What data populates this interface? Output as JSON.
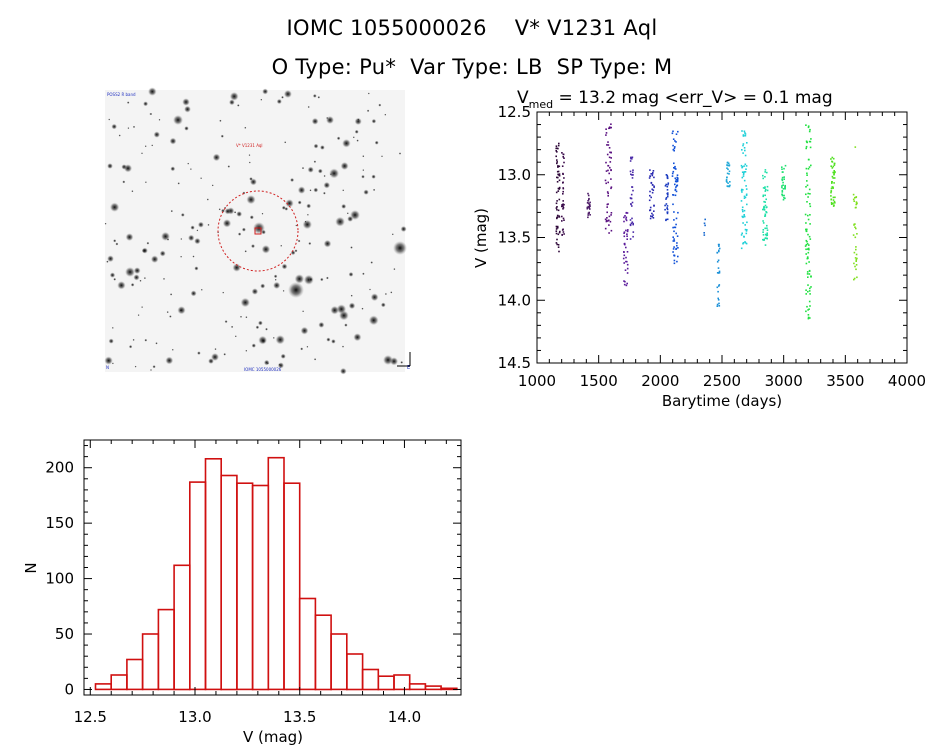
{
  "header": {
    "line1": "IOMC 1055000026    V* V1231 Aql",
    "line2": "O Type: Pu*  Var Type: LB  SP Type: M"
  },
  "image_panel": {
    "corner_label_tl": "POSS2 R band",
    "target_label": "V* V1231 Aql",
    "bottom_label": "IOMC 1055000026",
    "corner_label_bl": "N",
    "corner_label_br": "E"
  },
  "chart_data": [
    {
      "type": "scatter",
      "title_parts": {
        "v": "V",
        "sub": "med",
        "rest": " = 13.2 mag <err_V> = 0.1 mag"
      },
      "xlabel": "Barytime (days)",
      "ylabel": "V (mag)",
      "xlim": [
        1000,
        4000
      ],
      "ylim": [
        14.5,
        12.5
      ],
      "xticks": [
        1000,
        1500,
        2000,
        2500,
        3000,
        3500,
        4000
      ],
      "yticks": [
        12.5,
        13.0,
        13.5,
        14.0,
        14.5
      ],
      "xtick_labels": [
        "1000",
        "1500",
        "2000",
        "2500",
        "3000",
        "3500",
        "4000"
      ],
      "ytick_labels": [
        "12.5",
        "13.0",
        "13.5",
        "14.0",
        "14.5"
      ],
      "clusters": [
        {
          "t": 1170,
          "dt": 30,
          "mlo": 12.75,
          "mhi": 13.65,
          "color": "#2e0839",
          "n": 60
        },
        {
          "t": 1210,
          "dt": 20,
          "mlo": 12.8,
          "mhi": 13.5,
          "color": "#3a0a4a",
          "n": 35
        },
        {
          "t": 1420,
          "dt": 25,
          "mlo": 13.15,
          "mhi": 13.35,
          "color": "#4b1a66",
          "n": 25
        },
        {
          "t": 1580,
          "dt": 50,
          "mlo": 12.55,
          "mhi": 13.5,
          "color": "#5a1080",
          "n": 55
        },
        {
          "t": 1720,
          "dt": 35,
          "mlo": 13.3,
          "mhi": 13.9,
          "color": "#5a1a9a",
          "n": 40
        },
        {
          "t": 1770,
          "dt": 25,
          "mlo": 12.85,
          "mhi": 13.55,
          "color": "#4a2aa8",
          "n": 35
        },
        {
          "t": 1930,
          "dt": 40,
          "mlo": 12.95,
          "mhi": 13.35,
          "color": "#2a2ab0",
          "n": 35
        },
        {
          "t": 2050,
          "dt": 30,
          "mlo": 13.0,
          "mhi": 13.4,
          "color": "#1a3ac0",
          "n": 30
        },
        {
          "t": 2120,
          "dt": 45,
          "mlo": 12.65,
          "mhi": 13.8,
          "color": "#1050d8",
          "n": 70
        },
        {
          "t": 2360,
          "dt": 10,
          "mlo": 13.35,
          "mhi": 13.5,
          "color": "#1a6ad0",
          "n": 5
        },
        {
          "t": 2470,
          "dt": 25,
          "mlo": 13.55,
          "mhi": 14.05,
          "color": "#1a90d8",
          "n": 25
        },
        {
          "t": 2550,
          "dt": 30,
          "mlo": 12.9,
          "mhi": 13.1,
          "color": "#20a8d8",
          "n": 25
        },
        {
          "t": 2680,
          "dt": 45,
          "mlo": 12.65,
          "mhi": 13.6,
          "color": "#20d0d8",
          "n": 70
        },
        {
          "t": 2850,
          "dt": 40,
          "mlo": 12.95,
          "mhi": 13.6,
          "color": "#20e0a8",
          "n": 55
        },
        {
          "t": 3000,
          "dt": 30,
          "mlo": 12.9,
          "mhi": 13.2,
          "color": "#20e070",
          "n": 30
        },
        {
          "t": 3200,
          "dt": 45,
          "mlo": 12.6,
          "mhi": 14.15,
          "color": "#20e040",
          "n": 90
        },
        {
          "t": 3400,
          "dt": 35,
          "mlo": 12.85,
          "mhi": 13.25,
          "color": "#50e020",
          "n": 45
        },
        {
          "t": 3580,
          "dt": 30,
          "mlo": 13.15,
          "mhi": 13.85,
          "color": "#80e020",
          "n": 35
        },
        {
          "t": 3580,
          "dt": 5,
          "mlo": 12.78,
          "mhi": 12.78,
          "color": "#80e020",
          "n": 1
        }
      ]
    },
    {
      "type": "bar",
      "subtype": "histogram",
      "xlabel": "V (mag)",
      "ylabel": "N",
      "xlim": [
        12.47,
        14.27
      ],
      "ylim": [
        -5,
        225
      ],
      "xticks": [
        12.5,
        13.0,
        13.5,
        14.0
      ],
      "xtick_labels": [
        "12.5",
        "13.0",
        "13.5",
        "14.0"
      ],
      "yticks": [
        0,
        50,
        100,
        150,
        200
      ],
      "ytick_labels": [
        "0",
        "50",
        "100",
        "150",
        "200"
      ],
      "bin_start": 12.525,
      "bin_width": 0.075,
      "values": [
        5,
        13,
        27,
        50,
        72,
        112,
        187,
        208,
        193,
        186,
        184,
        209,
        186,
        82,
        67,
        50,
        32,
        18,
        12,
        13,
        5,
        3,
        1
      ],
      "color": "#d01010"
    }
  ]
}
